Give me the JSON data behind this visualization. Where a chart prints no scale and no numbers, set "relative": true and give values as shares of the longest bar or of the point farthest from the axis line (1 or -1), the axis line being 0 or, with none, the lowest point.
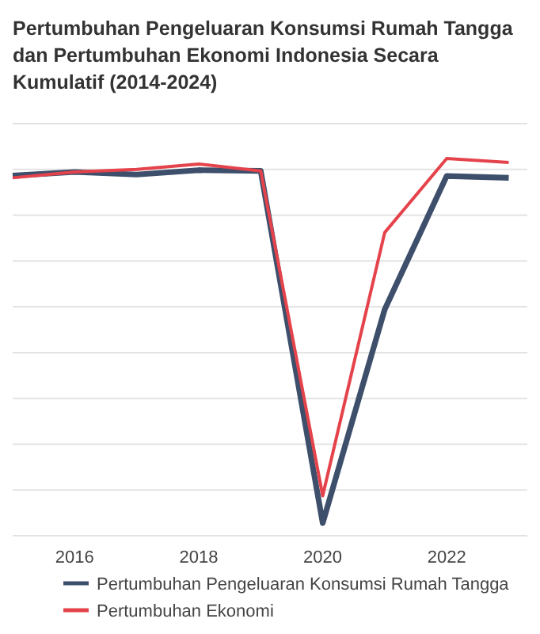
{
  "chart_data": {
    "type": "line",
    "title": "Pertumbuhan Pengeluaran Konsumsi Rumah Tangga dan Pertumbuhan Ekonomi Indonesia Secara Kumulatif (2014-2024)",
    "relative": true,
    "x": [
      2015,
      2016,
      2017,
      2018,
      2019,
      2020,
      2021,
      2022,
      2023
    ],
    "xlim": [
      2015,
      2023.3
    ],
    "xticks": [
      2016,
      2018,
      2020,
      2022
    ],
    "series": [
      {
        "name": "Pertumbuhan Pengeluaran Konsumsi Rumah Tangga",
        "color": "#3d4f6b",
        "values": [
          0.953,
          0.963,
          0.956,
          0.968,
          0.966,
          0,
          0.586,
          0.952,
          0.947
        ]
      },
      {
        "name": "Pertumbuhan Ekonomi",
        "color": "#e5434b",
        "values": [
          0.947,
          0.963,
          0.97,
          0.985,
          0.966,
          0.075,
          0.797,
          1,
          0.989
        ]
      }
    ],
    "grid": "y",
    "legend": "bottom",
    "marker": "none",
    "line_style": "solid"
  }
}
